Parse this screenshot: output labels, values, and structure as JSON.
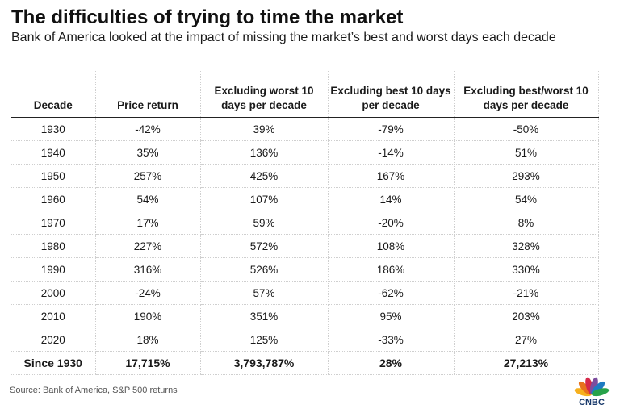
{
  "header": {
    "title": "The difficulties of trying to time the market",
    "subtitle": "Bank of America looked at the impact of missing the market’s best and worst days each decade"
  },
  "chart_data": {
    "type": "table",
    "columns": [
      "Decade",
      "Price return",
      "Excluding worst 10 days per decade",
      "Excluding best 10 days per decade",
      "Excluding best/worst 10 days per decade"
    ],
    "rows": [
      [
        "1930",
        "-42%",
        "39%",
        "-79%",
        "-50%"
      ],
      [
        "1940",
        "35%",
        "136%",
        "-14%",
        "51%"
      ],
      [
        "1950",
        "257%",
        "425%",
        "167%",
        "293%"
      ],
      [
        "1960",
        "54%",
        "107%",
        "14%",
        "54%"
      ],
      [
        "1970",
        "17%",
        "59%",
        "-20%",
        "8%"
      ],
      [
        "1980",
        "227%",
        "572%",
        "108%",
        "328%"
      ],
      [
        "1990",
        "316%",
        "526%",
        "186%",
        "330%"
      ],
      [
        "2000",
        "-24%",
        "57%",
        "-62%",
        "-21%"
      ],
      [
        "2010",
        "190%",
        "351%",
        "95%",
        "203%"
      ],
      [
        "2020",
        "18%",
        "125%",
        "-33%",
        "27%"
      ]
    ],
    "total_row": [
      "Since 1930",
      "17,715%",
      "3,793,787%",
      "28%",
      "27,213%"
    ]
  },
  "footer": {
    "source": "Source: Bank of America, S&P 500 returns",
    "logo_text": "CNBC"
  },
  "colors": {
    "peacock": [
      "#f6b01e",
      "#e8731c",
      "#d6294a",
      "#7c4d9e",
      "#1e7bc2",
      "#27a24a"
    ],
    "logo": "#1a3a6b"
  }
}
